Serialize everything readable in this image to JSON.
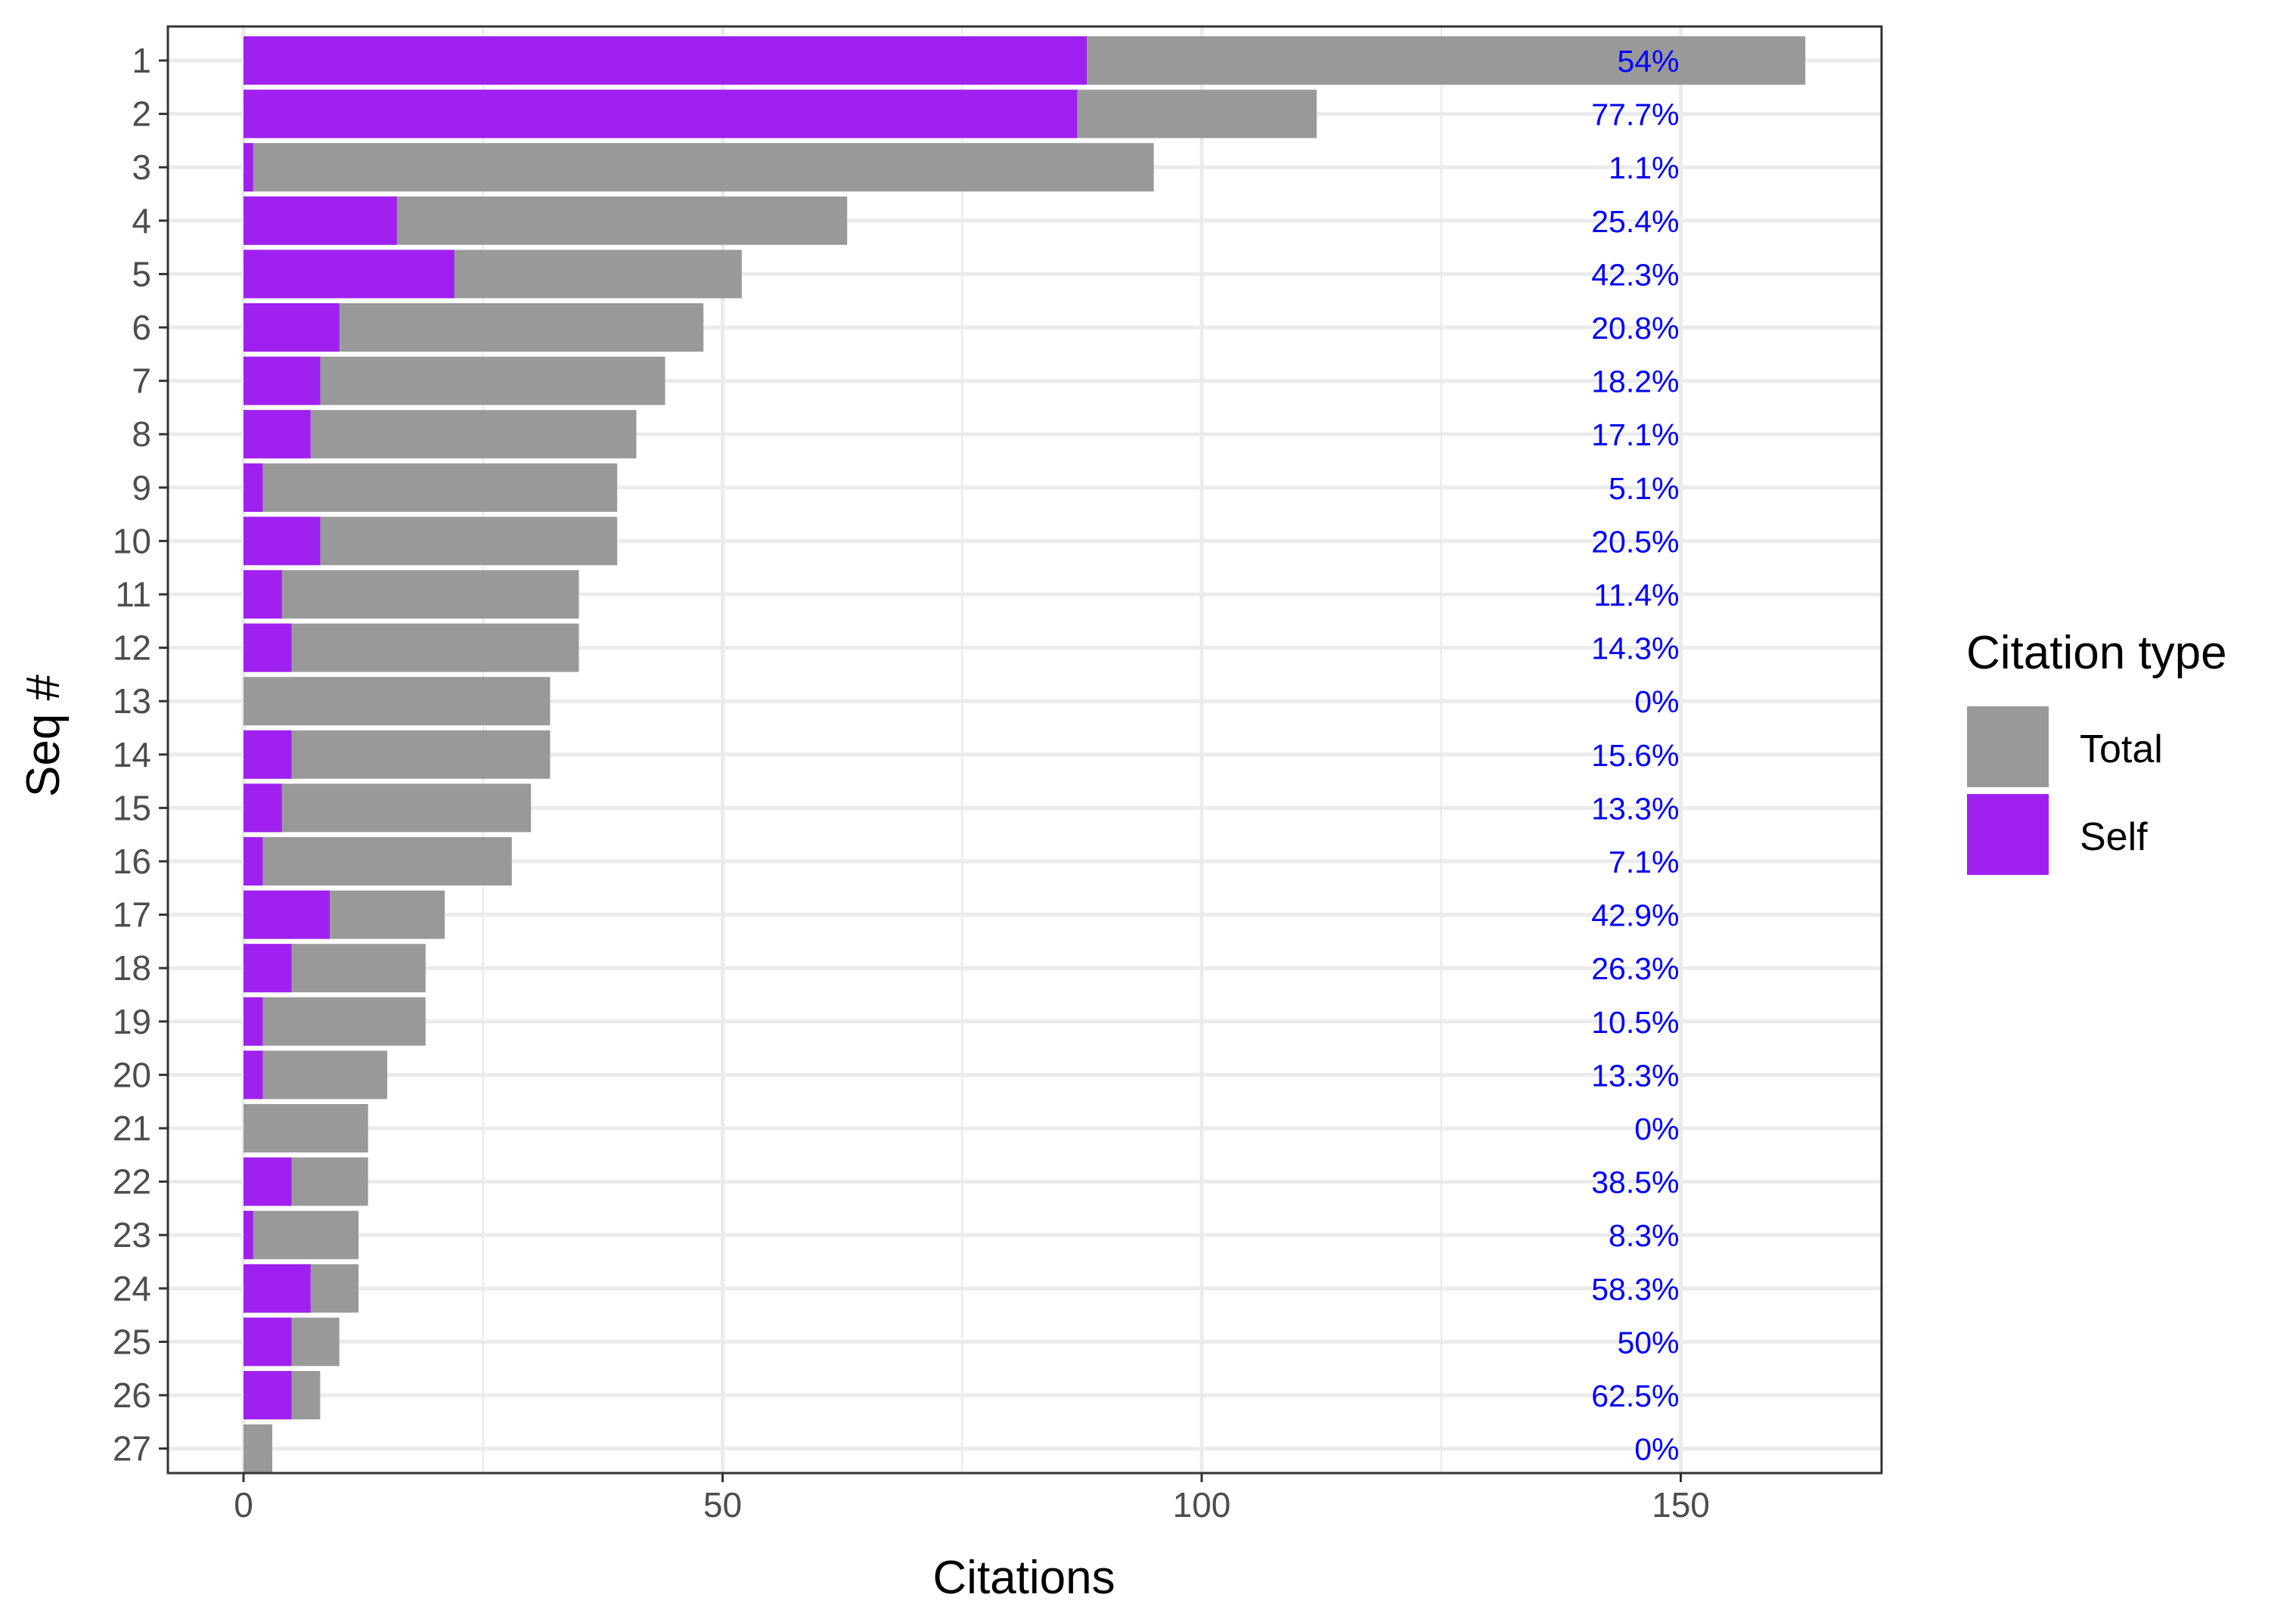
{
  "chart_data": {
    "type": "bar",
    "orientation": "horizontal",
    "xlabel": "Citations",
    "ylabel": "Seq #",
    "xlim": [
      -8,
      171
    ],
    "x_ticks": [
      0,
      50,
      100,
      150
    ],
    "grid": true,
    "categories": [
      "1",
      "2",
      "3",
      "4",
      "5",
      "6",
      "7",
      "8",
      "9",
      "10",
      "11",
      "12",
      "13",
      "14",
      "15",
      "16",
      "17",
      "18",
      "19",
      "20",
      "21",
      "22",
      "23",
      "24",
      "25",
      "26",
      "27"
    ],
    "series": [
      {
        "name": "Total",
        "color": "#999999",
        "values": [
          163,
          112,
          95,
          63,
          52,
          48,
          44,
          41,
          39,
          39,
          35,
          35,
          32,
          32,
          30,
          28,
          21,
          19,
          19,
          15,
          13,
          13,
          12,
          12,
          10,
          8,
          3
        ]
      },
      {
        "name": "Self",
        "color": "#A020F0",
        "values": [
          88,
          87,
          1,
          16,
          22,
          10,
          8,
          7,
          2,
          8,
          4,
          5,
          0,
          5,
          4,
          2,
          9,
          5,
          2,
          2,
          0,
          5,
          1,
          7,
          5,
          5,
          0
        ]
      }
    ],
    "annotations": {
      "color": "#0000FF",
      "x": 150,
      "labels": [
        "54%",
        "77.7%",
        "1.1%",
        "25.4%",
        "42.3%",
        "20.8%",
        "18.2%",
        "17.1%",
        "5.1%",
        "20.5%",
        "11.4%",
        "14.3%",
        "0%",
        "15.6%",
        "13.3%",
        "7.1%",
        "42.9%",
        "26.3%",
        "10.5%",
        "13.3%",
        "0%",
        "38.5%",
        "8.3%",
        "58.3%",
        "50%",
        "62.5%",
        "0%"
      ]
    },
    "legend": {
      "title": "Citation type",
      "position": "right",
      "items": [
        {
          "label": "Total",
          "color": "#999999"
        },
        {
          "label": "Self",
          "color": "#A020F0"
        }
      ]
    }
  }
}
